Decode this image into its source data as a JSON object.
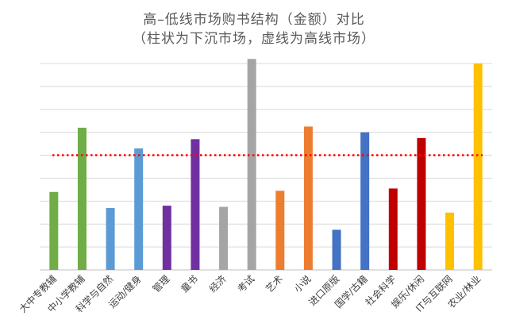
{
  "chart_data": {
    "type": "bar",
    "title": "高–低线市场购书结构（金额）对比",
    "subtitle": "（柱状为下沉市场，虚线为高线市场）",
    "xlabel": "",
    "ylabel": "",
    "ylim": [
      0,
      9
    ],
    "grid": true,
    "y_tick_labels_shown": false,
    "categories": [
      "大中专教辅",
      "中小学教辅",
      "科学与自然",
      "运动/健身",
      "管理",
      "童书",
      "经济",
      "考试",
      "艺术",
      "小说",
      "进口原版",
      "国学/古籍",
      "社会科学",
      "娱乐/休闲",
      "IT与互联网",
      "农业/林业"
    ],
    "values": [
      3.4,
      6.2,
      2.7,
      5.3,
      2.8,
      5.7,
      2.75,
      9.2,
      3.45,
      6.25,
      1.75,
      6.0,
      3.55,
      5.75,
      2.5,
      9.0
    ],
    "colors": [
      "#70AD47",
      "#70AD47",
      "#5B9BD5",
      "#5B9BD5",
      "#7030A0",
      "#7030A0",
      "#A5A5A5",
      "#A5A5A5",
      "#ED7D31",
      "#ED7D31",
      "#4472C4",
      "#4472C4",
      "#C00000",
      "#C00000",
      "#FFC000",
      "#FFC000"
    ],
    "reference_line": {
      "value": 5.0,
      "color": "#FF0000",
      "style": "dotted"
    },
    "gridline_color": "#D9D9D9"
  }
}
